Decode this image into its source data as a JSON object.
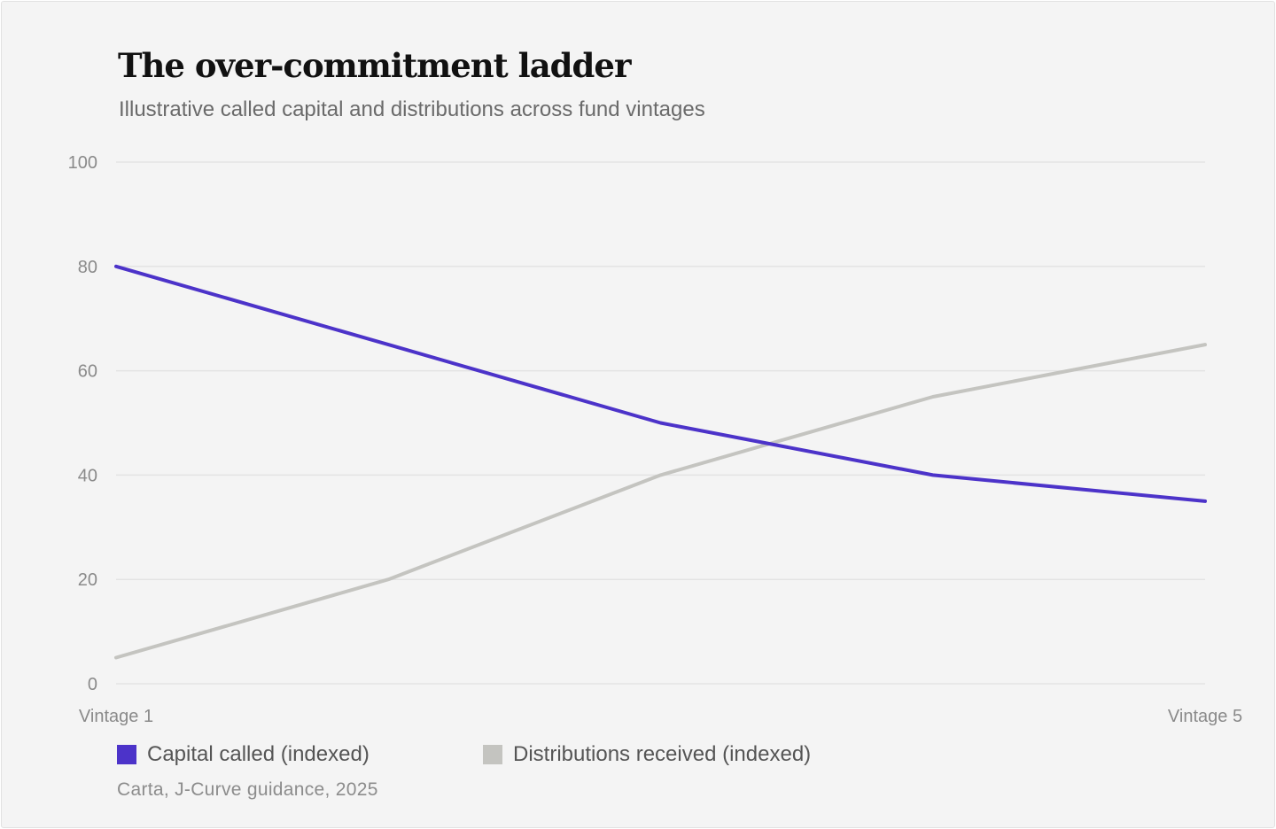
{
  "chart_data": {
    "type": "line",
    "title": "The over-commitment ladder",
    "subtitle": "Illustrative called capital and distributions across fund vintages",
    "x_tick_labels": [
      "Vintage 1",
      "Vintage 5"
    ],
    "y_ticks": [
      "0",
      "20",
      "40",
      "60",
      "80",
      "100"
    ],
    "ylim": [
      0,
      100
    ],
    "grid": true,
    "legend_position": "bottom-left",
    "series": [
      {
        "name": "Capital called (indexed)",
        "color": "#4c33c9",
        "values": [
          80,
          65,
          50,
          40,
          35
        ]
      },
      {
        "name": "Distributions received (indexed)",
        "color": "#c4c4c0",
        "values": [
          5,
          20,
          40,
          55,
          65
        ]
      }
    ],
    "source": "Carta, J-Curve guidance, 2025"
  }
}
